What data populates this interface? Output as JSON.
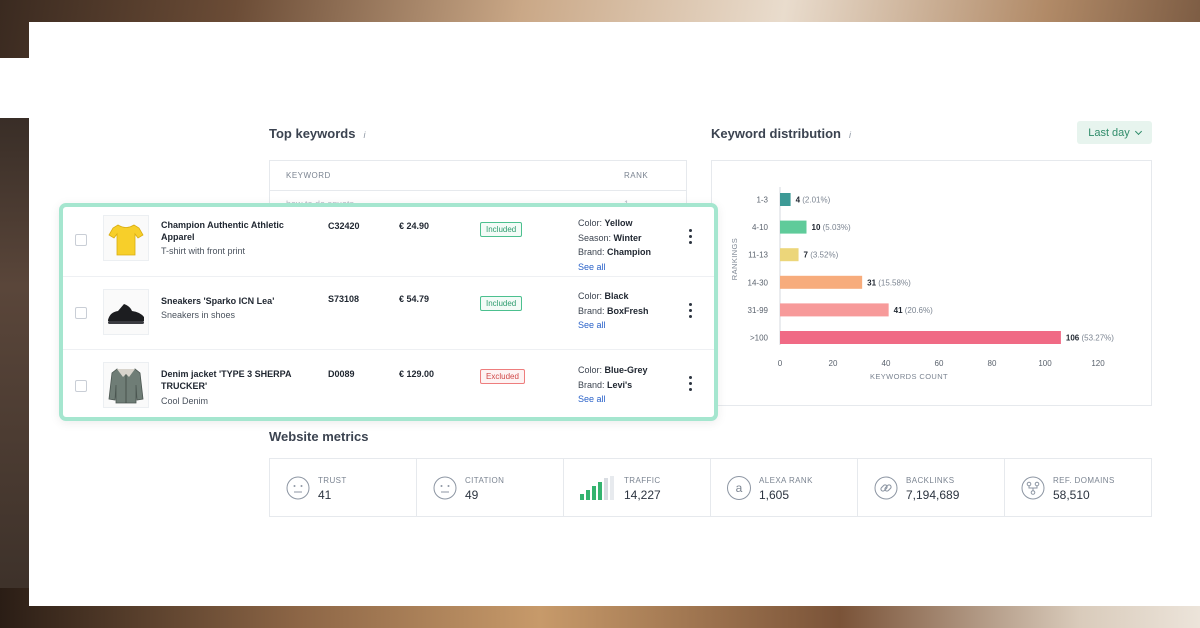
{
  "top_keywords": {
    "title": "Top keywords",
    "info": "i",
    "columns": {
      "keyword": "KEYWORD",
      "rank": "RANK"
    },
    "rows": [
      {
        "keyword": "how to do squats",
        "rank": "1"
      }
    ]
  },
  "keyword_distribution": {
    "title": "Keyword distribution",
    "info": "i",
    "period": "Last day"
  },
  "chart_data": {
    "type": "bar",
    "orientation": "horizontal",
    "categories": [
      "1-3",
      "4-10",
      "11-13",
      "14-30",
      "31-99",
      ">100"
    ],
    "values": [
      4,
      10,
      7,
      31,
      41,
      106
    ],
    "percent_labels": [
      "(2.01%)",
      "(5.03%)",
      "(3.52%)",
      "(15.58%)",
      "(20.6%)",
      "(53.27%)"
    ],
    "colors": [
      "#3d9a96",
      "#5fcb9a",
      "#ecd67a",
      "#f7ac7c",
      "#f79a9a",
      "#f06a85"
    ],
    "xlabel": "KEYWORDS COUNT",
    "ylabel": "RANKINGS",
    "xlim": [
      0,
      120
    ],
    "xticks": [
      0,
      20,
      40,
      60,
      80,
      100,
      120
    ],
    "grid": false,
    "legend": "none"
  },
  "products": [
    {
      "name": "Champion Authentic Athletic Apparel",
      "desc": "T-shirt with front print",
      "sku": "C32420",
      "price": "€ 24.90",
      "status": "Included",
      "attrs": [
        {
          "k": "Color: ",
          "v": "Yellow"
        },
        {
          "k": "Season: ",
          "v": "Winter"
        },
        {
          "k": "Brand: ",
          "v": "Champion"
        }
      ],
      "see_all": "See all",
      "thumb": "yellow-tshirt-icon"
    },
    {
      "name": "Sneakers 'Sparko ICN Lea'",
      "desc": "Sneakers in shoes",
      "sku": "S73108",
      "price": "€ 54.79",
      "status": "Included",
      "attrs": [
        {
          "k": "Color: ",
          "v": "Black"
        },
        {
          "k": "Brand: ",
          "v": "BoxFresh"
        }
      ],
      "see_all": "See all",
      "thumb": "black-sneaker-icon"
    },
    {
      "name": "Denim jacket 'TYPE 3 SHERPA TRUCKER'",
      "desc": "Cool Denim",
      "sku": "D0089",
      "price": "€ 129.00",
      "status": "Excluded",
      "attrs": [
        {
          "k": "Color: ",
          "v": "Blue-Grey"
        },
        {
          "k": "Brand: ",
          "v": "Levi's"
        }
      ],
      "see_all": "See all",
      "thumb": "denim-jacket-icon"
    }
  ],
  "website_metrics": {
    "title": "Website metrics",
    "items": [
      {
        "label": "TRUST",
        "value": "41",
        "icon": "neutral-face-icon"
      },
      {
        "label": "CITATION",
        "value": "49",
        "icon": "neutral-face-icon"
      },
      {
        "label": "TRAFFIC",
        "value": "14,227",
        "icon": "signal-bars-icon"
      },
      {
        "label": "ALEXA RANK",
        "value": "1,605",
        "icon": "alexa-a-icon"
      },
      {
        "label": "BACKLINKS",
        "value": "7,194,689",
        "icon": "link-icon"
      },
      {
        "label": "REF. DOMAINS",
        "value": "58,510",
        "icon": "network-icon"
      }
    ]
  }
}
